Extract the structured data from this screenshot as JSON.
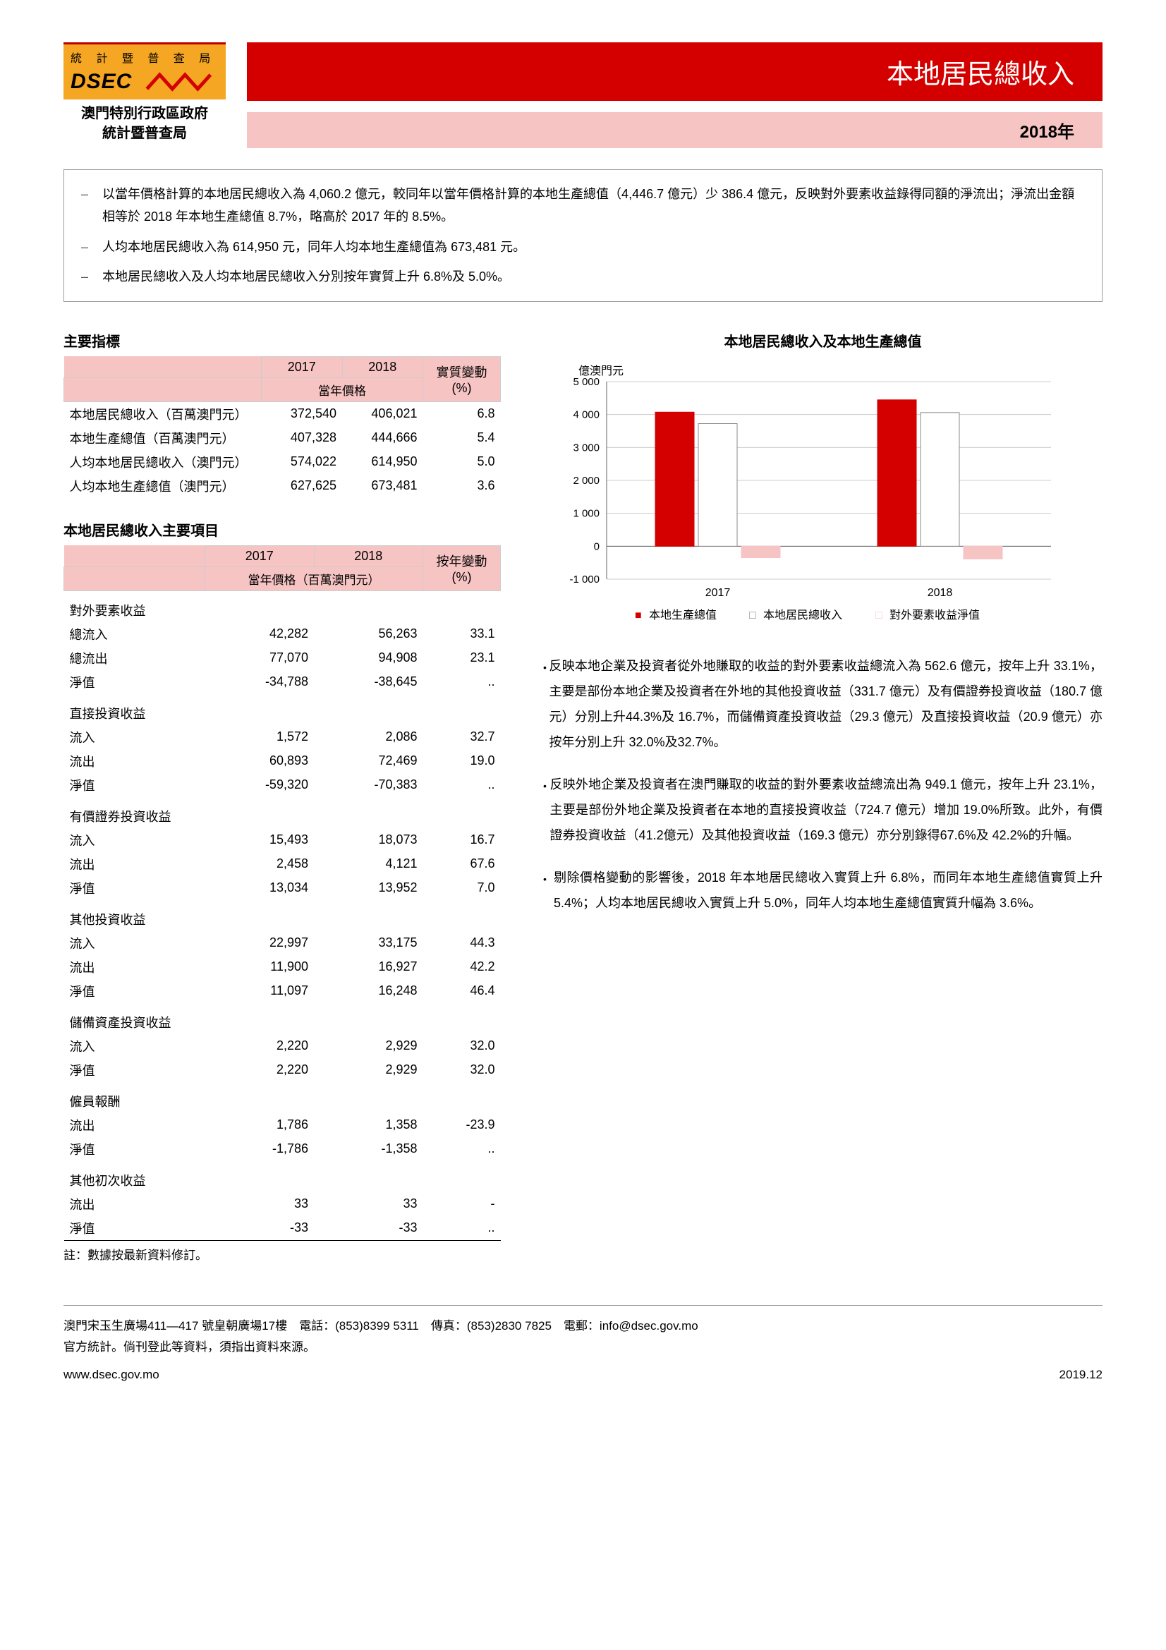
{
  "logo": {
    "top_text": "統 計 暨 普 查 局",
    "dsec": "DSEC",
    "sub1": "澳門特別行政區政府",
    "sub2": "統計暨普查局"
  },
  "title": "本地居民總收入",
  "year_label": "2018年",
  "summary": [
    "以當年價格計算的本地居民總收入為 4,060.2 億元，較同年以當年價格計算的本地生產總值（4,446.7 億元）少 386.4 億元，反映對外要素收益錄得同額的淨流出；淨流出金額相等於 2018 年本地生產總值 8.7%，略高於 2017 年的 8.5%。",
    "人均本地居民總收入為 614,950 元，同年人均本地生產總值為 673,481 元。",
    "本地居民總收入及人均本地居民總收入分別按年實質上升 6.8%及 5.0%。"
  ],
  "table1": {
    "title": "主要指標",
    "col_2017": "2017",
    "col_2018": "2018",
    "col_change": "實質變動",
    "sub_price": "當年價格",
    "sub_pct": "(%)",
    "rows": [
      {
        "label": "本地居民總收入（百萬澳門元）",
        "v2017": "372,540",
        "v2018": "406,021",
        "chg": "6.8"
      },
      {
        "label": "本地生產總值（百萬澳門元）",
        "v2017": "407,328",
        "v2018": "444,666",
        "chg": "5.4"
      },
      {
        "label": "人均本地居民總收入（澳門元）",
        "v2017": "574,022",
        "v2018": "614,950",
        "chg": "5.0"
      },
      {
        "label": "人均本地生產總值（澳門元）",
        "v2017": "627,625",
        "v2018": "673,481",
        "chg": "3.6"
      }
    ]
  },
  "table2": {
    "title": "本地居民總收入主要項目",
    "col_2017": "2017",
    "col_2018": "2018",
    "col_change": "按年變動",
    "sub_price": "當年價格（百萬澳門元）",
    "sub_pct": "(%)",
    "groups": [
      {
        "label": "對外要素收益",
        "rows": [
          {
            "label": "總流入",
            "v2017": "42,282",
            "v2018": "56,263",
            "chg": "33.1"
          },
          {
            "label": "總流出",
            "v2017": "77,070",
            "v2018": "94,908",
            "chg": "23.1"
          },
          {
            "label": "淨值",
            "v2017": "-34,788",
            "v2018": "-38,645",
            "chg": ".."
          }
        ]
      },
      {
        "label": "直接投資收益",
        "rows": [
          {
            "label": "流入",
            "v2017": "1,572",
            "v2018": "2,086",
            "chg": "32.7"
          },
          {
            "label": "流出",
            "v2017": "60,893",
            "v2018": "72,469",
            "chg": "19.0"
          },
          {
            "label": "淨值",
            "v2017": "-59,320",
            "v2018": "-70,383",
            "chg": ".."
          }
        ]
      },
      {
        "label": "有價證券投資收益",
        "rows": [
          {
            "label": "流入",
            "v2017": "15,493",
            "v2018": "18,073",
            "chg": "16.7"
          },
          {
            "label": "流出",
            "v2017": "2,458",
            "v2018": "4,121",
            "chg": "67.6"
          },
          {
            "label": "淨值",
            "v2017": "13,034",
            "v2018": "13,952",
            "chg": "7.0"
          }
        ]
      },
      {
        "label": "其他投資收益",
        "rows": [
          {
            "label": "流入",
            "v2017": "22,997",
            "v2018": "33,175",
            "chg": "44.3"
          },
          {
            "label": "流出",
            "v2017": "11,900",
            "v2018": "16,927",
            "chg": "42.2"
          },
          {
            "label": "淨值",
            "v2017": "11,097",
            "v2018": "16,248",
            "chg": "46.4"
          }
        ]
      },
      {
        "label": "儲備資產投資收益",
        "rows": [
          {
            "label": "流入",
            "v2017": "2,220",
            "v2018": "2,929",
            "chg": "32.0"
          },
          {
            "label": "淨值",
            "v2017": "2,220",
            "v2018": "2,929",
            "chg": "32.0"
          }
        ]
      },
      {
        "label": "僱員報酬",
        "rows": [
          {
            "label": "流出",
            "v2017": "1,786",
            "v2018": "1,358",
            "chg": "-23.9"
          },
          {
            "label": "淨值",
            "v2017": "-1,786",
            "v2018": "-1,358",
            "chg": ".."
          }
        ]
      },
      {
        "label": "其他初次收益",
        "rows": [
          {
            "label": "流出",
            "v2017": "33",
            "v2018": "33",
            "chg": "-"
          },
          {
            "label": "淨值",
            "v2017": "-33",
            "v2018": "-33",
            "chg": ".."
          }
        ]
      }
    ],
    "note": "註：數據按最新資料修訂。"
  },
  "chart": {
    "title": "本地居民總收入及本地生產總值",
    "ylabel": "億澳門元",
    "categories": [
      "2017",
      "2018"
    ],
    "series": [
      {
        "name": "本地生產總值",
        "color": "#d40000",
        "values": [
          4073,
          4447
        ]
      },
      {
        "name": "本地居民總收入",
        "color": "#ffffff",
        "border": "#888",
        "values": [
          3725,
          4060
        ]
      },
      {
        "name": "對外要素收益淨值",
        "color": "#f7c4c4",
        "values": [
          -348,
          -386
        ]
      }
    ],
    "ylim": [
      -1000,
      5000
    ],
    "ytick_step": 1000,
    "grid_color": "#ccc",
    "legend": [
      "本地生產總值",
      "本地居民總收入",
      "對外要素收益淨值"
    ],
    "legend_markers": [
      "■",
      "□",
      "□"
    ],
    "legend_colors": [
      "#d40000",
      "#888",
      "#f7c4c4"
    ]
  },
  "bullets": [
    "反映本地企業及投資者從外地賺取的收益的對外要素收益總流入為 562.6 億元，按年上升 33.1%，主要是部份本地企業及投資者在外地的其他投資收益（331.7 億元）及有價證券投資收益（180.7 億元）分別上升44.3%及 16.7%，而儲備資產投資收益（29.3 億元）及直接投資收益（20.9 億元）亦按年分別上升 32.0%及32.7%。",
    "反映外地企業及投資者在澳門賺取的收益的對外要素收益總流出為 949.1 億元，按年上升 23.1%，主要是部份外地企業及投資者在本地的直接投資收益（724.7 億元）增加 19.0%所致。此外，有價證券投資收益（41.2億元）及其他投資收益（169.3 億元）亦分別錄得67.6%及 42.2%的升幅。",
    "剔除價格變動的影響後，2018 年本地居民總收入實質上升 6.8%，而同年本地生產總值實質上升 5.4%；人均本地居民總收入實質上升 5.0%，同年人均本地生產總值實質升幅為 3.6%。"
  ],
  "footer": {
    "address": "澳門宋玉生廣場411—417 號皇朝廣場17樓　電話：(853)8399 5311　傳真：(853)2830 7825　電郵：info@dsec.gov.mo",
    "note": "官方統計。倘刊登此等資料，須指出資料來源。",
    "url": "www.dsec.gov.mo",
    "date": "2019.12"
  }
}
